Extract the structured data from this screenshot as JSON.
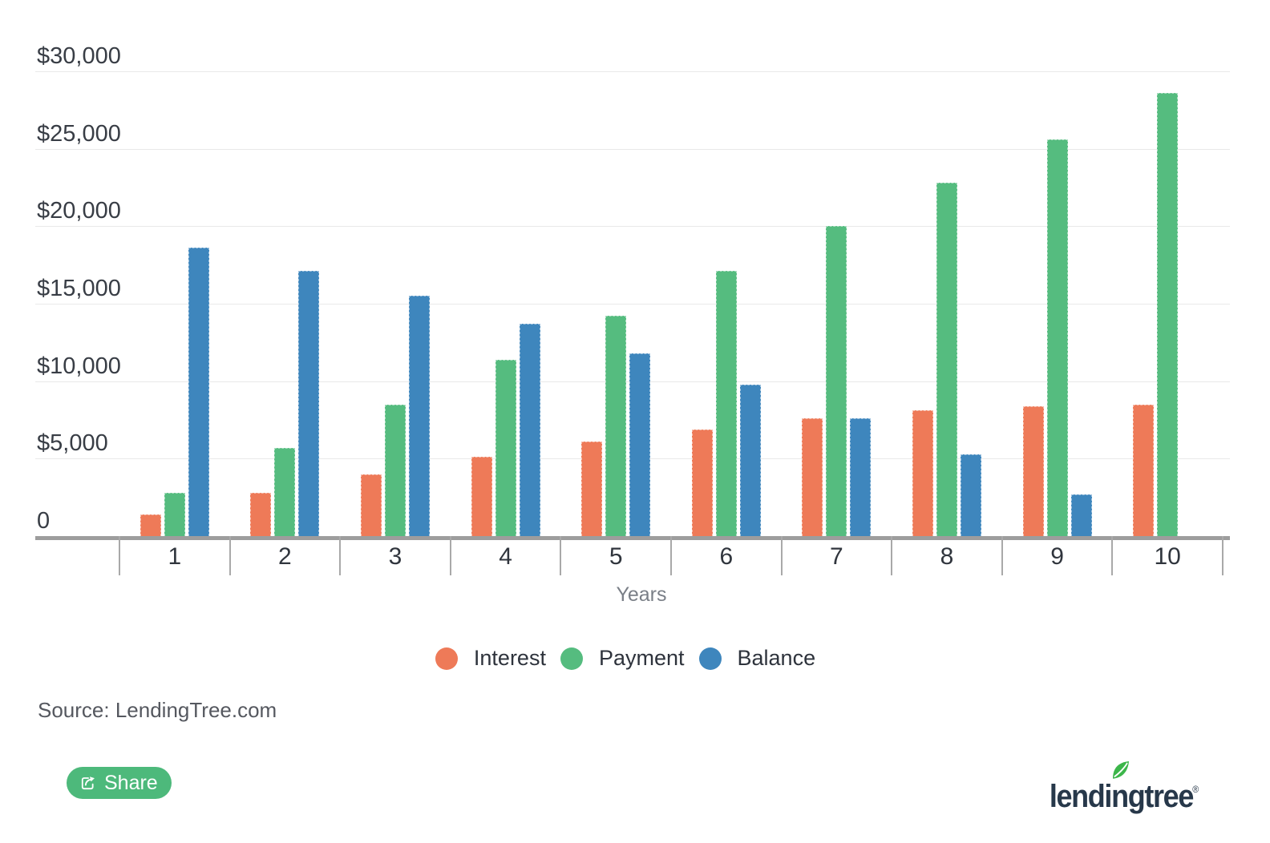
{
  "chart_data": {
    "type": "bar",
    "title": "",
    "categories": [
      "1",
      "2",
      "3",
      "4",
      "5",
      "6",
      "7",
      "8",
      "9",
      "10"
    ],
    "xlabel": "Years",
    "ylabel": "",
    "ylim": [
      0,
      30000
    ],
    "ytick_step": 5000,
    "yticks": [
      {
        "value": 0,
        "label": "0"
      },
      {
        "value": 5000,
        "label": "$5,000"
      },
      {
        "value": 10000,
        "label": "$10,000"
      },
      {
        "value": 15000,
        "label": "$15,000"
      },
      {
        "value": 20000,
        "label": "$20,000"
      },
      {
        "value": 25000,
        "label": "$25,000"
      },
      {
        "value": 30000,
        "label": "$30,000"
      }
    ],
    "grid": true,
    "legend_position": "bottom",
    "series": [
      {
        "name": "Interest",
        "color": "#ee7a58",
        "values": [
          1400,
          2800,
          4000,
          5100,
          6100,
          6900,
          7600,
          8100,
          8400,
          8500
        ]
      },
      {
        "name": "Payment",
        "color": "#55bc7f",
        "values": [
          2800,
          5700,
          8500,
          11400,
          14200,
          17100,
          20000,
          22800,
          25600,
          28600
        ]
      },
      {
        "name": "Balance",
        "color": "#3e86bd",
        "values": [
          18600,
          17100,
          15500,
          13700,
          11800,
          9800,
          7600,
          5300,
          2700,
          0
        ]
      }
    ]
  },
  "footer": {
    "source_text": "Source: LendingTree.com",
    "share_button_label": "Share",
    "share_button_color": "#4db97b",
    "logo": {
      "text": "lendingtree",
      "registered_mark": "®",
      "leaf_color": "#3cb64a"
    }
  }
}
